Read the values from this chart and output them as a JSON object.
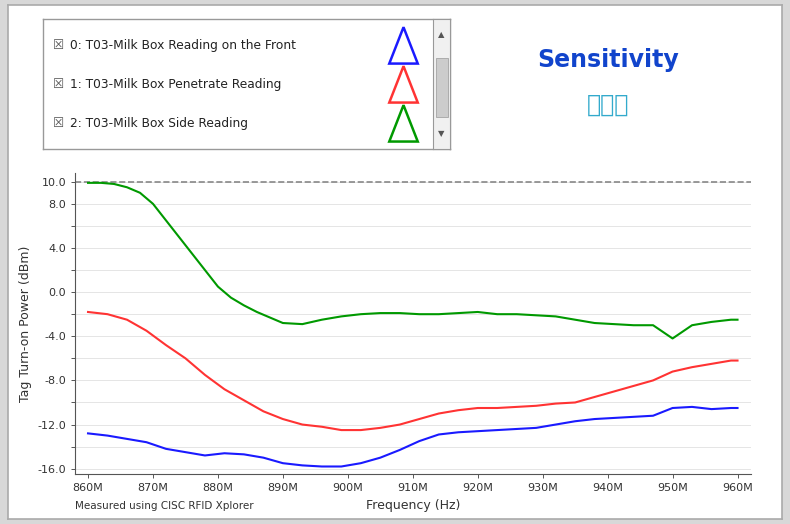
{
  "title_en": "Sensitivity",
  "title_cn": "灵敏度",
  "xlabel": "Frequency (Hz)",
  "ylabel": "Tag Turn-on Power (dBm)",
  "footnote": "Measured using CISC RFID Xplorer",
  "ylim": [
    -16.5,
    10.5
  ],
  "ytick_vals": [
    -16,
    -14,
    -12,
    -10,
    -8,
    -6,
    -4,
    -2,
    0,
    2,
    4,
    6,
    8,
    10
  ],
  "ytick_labels": [
    "-16.0",
    "",
    "-12.0",
    "",
    "-8.0",
    "",
    "-4.0",
    "",
    "0.0",
    "",
    "4.0",
    "",
    "8.0",
    "10.0"
  ],
  "xtick_labels": [
    "860M",
    "870M",
    "880M",
    "890M",
    "900M",
    "910M",
    "920M",
    "930M",
    "940M",
    "950M",
    "960M"
  ],
  "xtick_vals": [
    860,
    870,
    880,
    890,
    900,
    910,
    920,
    930,
    940,
    950,
    960
  ],
  "legend_labels": [
    "0: T03-Milk Box Reading on the Front",
    "1: T03-Milk Box Penetrate Reading",
    "2: T03-Milk Box Side Reading"
  ],
  "colors": [
    "#1a1aff",
    "#ff3333",
    "#009900"
  ],
  "outer_bg": "#d8d8d8",
  "inner_bg": "#ffffff",
  "blue_x": [
    860,
    863,
    866,
    869,
    872,
    875,
    878,
    881,
    884,
    887,
    890,
    893,
    896,
    899,
    902,
    905,
    908,
    911,
    914,
    917,
    920,
    923,
    926,
    929,
    932,
    935,
    938,
    941,
    944,
    947,
    950,
    953,
    956,
    959,
    960
  ],
  "blue_y": [
    -12.8,
    -13.0,
    -13.3,
    -13.6,
    -14.2,
    -14.5,
    -14.8,
    -14.6,
    -14.7,
    -15.0,
    -15.5,
    -15.7,
    -15.8,
    -15.8,
    -15.5,
    -15.0,
    -14.3,
    -13.5,
    -12.9,
    -12.7,
    -12.6,
    -12.5,
    -12.4,
    -12.3,
    -12.0,
    -11.7,
    -11.5,
    -11.4,
    -11.3,
    -11.2,
    -10.5,
    -10.4,
    -10.6,
    -10.5,
    -10.5
  ],
  "red_x": [
    860,
    863,
    866,
    869,
    872,
    875,
    878,
    881,
    884,
    887,
    890,
    893,
    896,
    899,
    902,
    905,
    908,
    911,
    914,
    917,
    920,
    923,
    926,
    929,
    932,
    935,
    938,
    941,
    944,
    947,
    950,
    953,
    956,
    959,
    960
  ],
  "red_y": [
    -1.8,
    -2.0,
    -2.5,
    -3.5,
    -4.8,
    -6.0,
    -7.5,
    -8.8,
    -9.8,
    -10.8,
    -11.5,
    -12.0,
    -12.2,
    -12.5,
    -12.5,
    -12.3,
    -12.0,
    -11.5,
    -11.0,
    -10.7,
    -10.5,
    -10.5,
    -10.4,
    -10.3,
    -10.1,
    -10.0,
    -9.5,
    -9.0,
    -8.5,
    -8.0,
    -7.2,
    -6.8,
    -6.5,
    -6.2,
    -6.2
  ],
  "green_x": [
    860,
    862,
    864,
    866,
    868,
    870,
    872,
    874,
    876,
    878,
    880,
    882,
    884,
    886,
    888,
    890,
    893,
    896,
    899,
    902,
    905,
    908,
    911,
    914,
    917,
    920,
    923,
    926,
    929,
    932,
    935,
    938,
    941,
    944,
    947,
    950,
    953,
    956,
    959,
    960
  ],
  "green_y": [
    9.9,
    9.9,
    9.8,
    9.5,
    9.0,
    8.0,
    6.5,
    5.0,
    3.5,
    2.0,
    0.5,
    -0.5,
    -1.2,
    -1.8,
    -2.3,
    -2.8,
    -2.9,
    -2.5,
    -2.2,
    -2.0,
    -1.9,
    -1.9,
    -2.0,
    -2.0,
    -1.9,
    -1.8,
    -2.0,
    -2.0,
    -2.1,
    -2.2,
    -2.5,
    -2.8,
    -2.9,
    -3.0,
    -3.0,
    -4.2,
    -3.0,
    -2.7,
    -2.5,
    -2.5
  ]
}
